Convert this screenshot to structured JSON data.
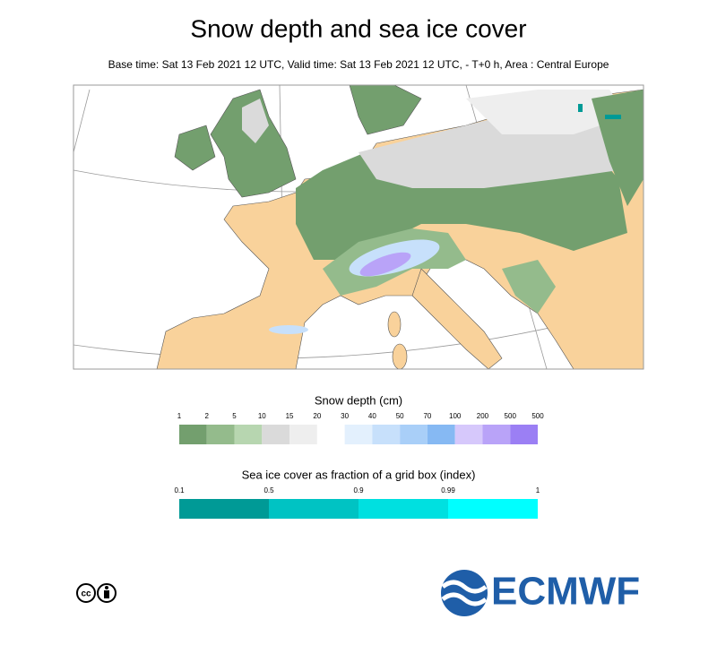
{
  "header": {
    "title": "Snow depth and sea ice cover",
    "subtitle": "Base time: Sat 13 Feb 2021 12 UTC, Valid time: Sat 13 Feb 2021 12 UTC, - T+0 h, Area : Central Europe"
  },
  "legends": [
    {
      "title": "Snow depth (cm)",
      "labels": [
        "1",
        "2",
        "5",
        "10",
        "15",
        "20",
        "30",
        "40",
        "50",
        "70",
        "100",
        "200",
        "500",
        "500"
      ],
      "colors": [
        "#739f6e",
        "#94bb8c",
        "#b7d6b0",
        "#dadada",
        "#eeeeee",
        "#ffffff",
        "#e3f0fd",
        "#c7e0fb",
        "#a9cff8",
        "#86b9f3",
        "#d6c8fb",
        "#b9a3f8",
        "#9b7ff4"
      ]
    },
    {
      "title": "Sea ice cover as fraction of a grid box (index)",
      "labels": [
        "0.1",
        "0.5",
        "0.9",
        "0.99",
        "1"
      ],
      "colors": [
        "#009a96",
        "#00c3c3",
        "#00e0e0",
        "#00ffff"
      ]
    }
  ],
  "footer": {
    "license": "cc",
    "logo": "ECMWF"
  }
}
